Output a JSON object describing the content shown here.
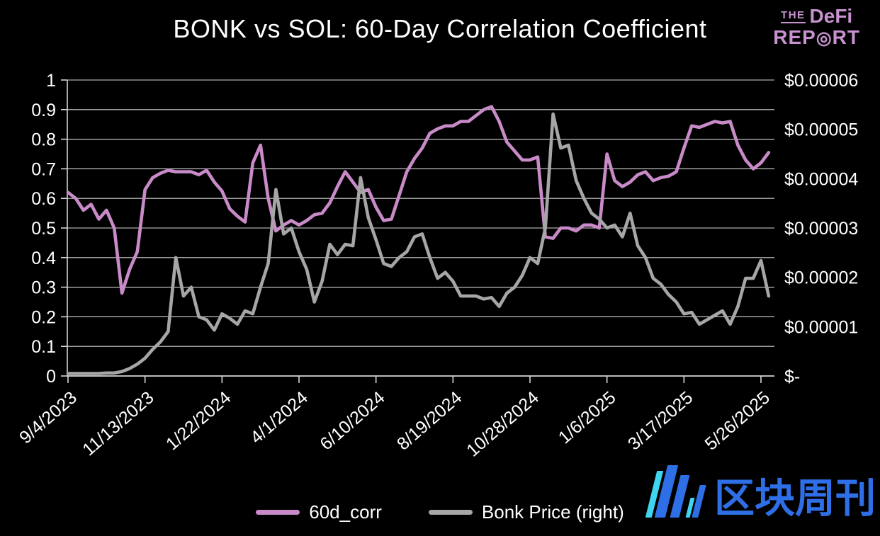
{
  "background": "#000000",
  "title": "BONK vs SOL: 60-Day Correlation Coefficient",
  "logo": {
    "the": "THE",
    "defi": "DeFi",
    "report_pre": "REP",
    "report_bullseye": "◎",
    "report_post": "RT",
    "color": "#c792cf"
  },
  "watermark": {
    "text": "区块周刊",
    "color_primary": "#2e6fe8",
    "color_accent": "#3fd4f0"
  },
  "legend": [
    {
      "label": "60d_corr",
      "color": "#c88bc8"
    },
    {
      "label": "Bonk Price (right)",
      "color": "#a6a6a6"
    }
  ],
  "chart_data": {
    "type": "line",
    "title": "BONK vs SOL: 60-Day Correlation Coefficient",
    "grid": "horizontal",
    "legend_position": "bottom",
    "x_note": "series sampled weekly starting 9/4/2023; ticks every 10 weeks",
    "x_tick_labels": [
      "9/4/2023",
      "11/13/2023",
      "1/22/2024",
      "4/1/2024",
      "6/10/2024",
      "8/19/2024",
      "10/28/2024",
      "1/6/2025",
      "3/17/2025",
      "5/26/2025"
    ],
    "x_tick_weeks": [
      0,
      10,
      20,
      30,
      40,
      50,
      60,
      70,
      80,
      90
    ],
    "left_axis": {
      "min": 0,
      "max": 1,
      "ticks": [
        "1",
        "0.9",
        "0.8",
        "0.7",
        "0.6",
        "0.5",
        "0.4",
        "0.3",
        "0.2",
        "0.1",
        "0"
      ]
    },
    "right_axis": {
      "min": 0,
      "max": 6e-05,
      "ticks": [
        "$0.00006",
        "$0.00005",
        "$0.00004",
        "$0.00003",
        "$0.00002",
        "$0.00001",
        "$-"
      ]
    },
    "series": [
      {
        "name": "60d_corr",
        "axis": "left",
        "color": "#c88bc8",
        "values": [
          0.62,
          0.6,
          0.56,
          0.58,
          0.53,
          0.56,
          0.5,
          0.28,
          0.36,
          0.42,
          0.63,
          0.67,
          0.685,
          0.695,
          0.69,
          0.69,
          0.69,
          0.68,
          0.695,
          0.655,
          0.625,
          0.565,
          0.54,
          0.52,
          0.72,
          0.78,
          0.6,
          0.49,
          0.51,
          0.525,
          0.51,
          0.525,
          0.545,
          0.55,
          0.585,
          0.64,
          0.69,
          0.655,
          0.62,
          0.63,
          0.57,
          0.525,
          0.53,
          0.61,
          0.69,
          0.735,
          0.77,
          0.82,
          0.835,
          0.845,
          0.845,
          0.86,
          0.86,
          0.88,
          0.9,
          0.91,
          0.86,
          0.79,
          0.76,
          0.73,
          0.73,
          0.74,
          0.47,
          0.465,
          0.5,
          0.5,
          0.49,
          0.51,
          0.51,
          0.5,
          0.75,
          0.66,
          0.64,
          0.655,
          0.68,
          0.69,
          0.66,
          0.67,
          0.675,
          0.69,
          0.77,
          0.845,
          0.84,
          0.85,
          0.86,
          0.855,
          0.86,
          0.78,
          0.73,
          0.7,
          0.72,
          0.755
        ]
      },
      {
        "name": "Bonk Price (right)",
        "axis": "right",
        "color": "#a6a6a6",
        "values": [
          5e-07,
          5e-07,
          5e-07,
          5e-07,
          5e-07,
          6e-07,
          6e-07,
          9e-07,
          1.5e-06,
          2.4e-06,
          3.6e-06,
          5.4e-06,
          6.9e-06,
          9e-06,
          2.4e-05,
          1.62e-05,
          1.8e-05,
          1.2e-05,
          1.14e-05,
          9.3e-06,
          1.26e-05,
          1.17e-05,
          1.05e-05,
          1.32e-05,
          1.26e-05,
          1.8e-05,
          2.28e-05,
          3.78e-05,
          2.88e-05,
          3e-05,
          2.52e-05,
          2.16e-05,
          1.5e-05,
          1.92e-05,
          2.67e-05,
          2.46e-05,
          2.67e-05,
          2.64e-05,
          4.02e-05,
          3.21e-05,
          2.76e-05,
          2.28e-05,
          2.22e-05,
          2.4e-05,
          2.52e-05,
          2.82e-05,
          2.88e-05,
          2.4e-05,
          1.98e-05,
          2.1e-05,
          1.92e-05,
          1.62e-05,
          1.62e-05,
          1.62e-05,
          1.56e-05,
          1.59e-05,
          1.41e-05,
          1.68e-05,
          1.8e-05,
          2.04e-05,
          2.4e-05,
          2.28e-05,
          3e-05,
          5.31e-05,
          4.62e-05,
          4.68e-05,
          3.96e-05,
          3.6e-05,
          3.3e-05,
          3.18e-05,
          3e-05,
          3.06e-05,
          2.82e-05,
          3.3e-05,
          2.64e-05,
          2.4e-05,
          1.98e-05,
          1.86e-05,
          1.65e-05,
          1.5e-05,
          1.26e-05,
          1.29e-05,
          1.05e-05,
          1.14e-05,
          1.23e-05,
          1.32e-05,
          1.05e-05,
          1.41e-05,
          1.98e-05,
          1.98e-05,
          2.34e-05,
          1.62e-05
        ]
      }
    ]
  }
}
